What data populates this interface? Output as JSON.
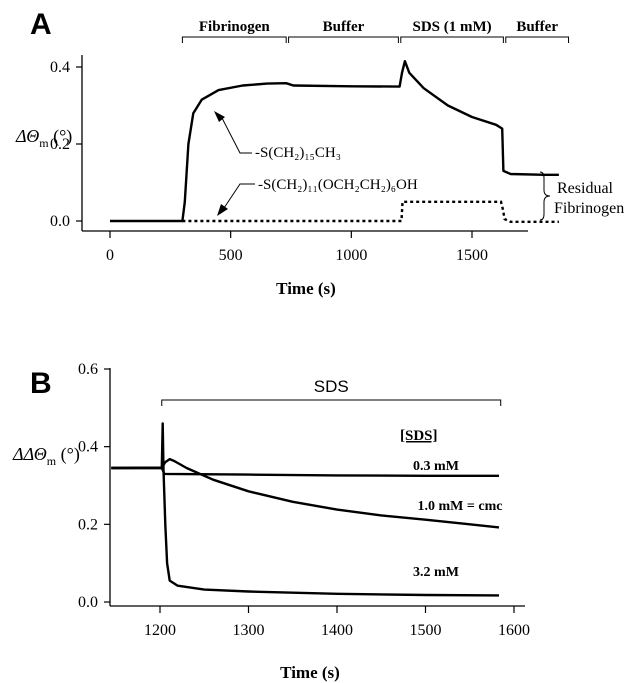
{
  "chart_data": [
    {
      "panel": "A",
      "type": "line",
      "ylabel_main": "ΔΘ",
      "ylabel_sub": "m",
      "ylabel_unit": " (°)",
      "xlabel": "Time (s)",
      "xlim": [
        0,
        1900
      ],
      "ylim": [
        0,
        0.42
      ],
      "x_ticks": [
        "0",
        "500",
        "1000",
        "1500"
      ],
      "y_ticks": [
        "0.0",
        "0.2",
        "0.4"
      ],
      "phases": [
        {
          "label": "Fibrinogen",
          "start": 300,
          "end": 730
        },
        {
          "label": "Buffer",
          "start": 740,
          "end": 1195
        },
        {
          "label": "SDS (1 mM)",
          "start": 1205,
          "end": 1630
        },
        {
          "label": "Buffer",
          "start": 1640,
          "end": 1900
        }
      ],
      "series": [
        {
          "name": "-S(CH2)15CH3",
          "style": "solid",
          "points": [
            [
              0,
              0
            ],
            [
              300,
              0
            ],
            [
              310,
              0.05
            ],
            [
              325,
              0.2
            ],
            [
              345,
              0.28
            ],
            [
              380,
              0.315
            ],
            [
              450,
              0.34
            ],
            [
              550,
              0.352
            ],
            [
              650,
              0.357
            ],
            [
              730,
              0.358
            ],
            [
              760,
              0.352
            ],
            [
              1000,
              0.35
            ],
            [
              1200,
              0.349
            ],
            [
              1210,
              0.385
            ],
            [
              1222,
              0.415
            ],
            [
              1240,
              0.385
            ],
            [
              1300,
              0.345
            ],
            [
              1400,
              0.3
            ],
            [
              1500,
              0.27
            ],
            [
              1600,
              0.25
            ],
            [
              1625,
              0.24
            ],
            [
              1630,
              0.13
            ],
            [
              1660,
              0.122
            ],
            [
              1800,
              0.12
            ],
            [
              1860,
              0.12
            ]
          ]
        },
        {
          "name": "-S(CH2)11(OCH2CH2)6OH",
          "style": "dotted",
          "points": [
            [
              300,
              0
            ],
            [
              1208,
              0
            ],
            [
              1212,
              0.05
            ],
            [
              1620,
              0.05
            ],
            [
              1628,
              0.03
            ],
            [
              1635,
              0.005
            ],
            [
              1660,
              -0.002
            ],
            [
              1760,
              -0.002
            ],
            [
              1860,
              -0.002
            ]
          ]
        }
      ],
      "annotations": [
        "-S(CH₂)₁₅CH₃",
        "-S(CH₂)₁₁(OCH₂CH₂)₆OH"
      ],
      "side_label": [
        "Residual",
        "Fibrinogen"
      ]
    },
    {
      "panel": "B",
      "type": "line",
      "ylabel_main": "ΔΔΘ",
      "ylabel_sub": "m",
      "ylabel_unit": " (°)",
      "xlabel": "Time (s)",
      "xlim": [
        1145,
        1600
      ],
      "ylim": [
        -0.02,
        0.6
      ],
      "x_ticks": [
        "1200",
        "1300",
        "1400",
        "1500",
        "1600"
      ],
      "y_ticks": [
        "0.0",
        "0.2",
        "0.4",
        "0.6"
      ],
      "phase": {
        "label": "SDS",
        "start": 1202,
        "end": 1585
      },
      "legend_title": "[SDS]",
      "series": [
        {
          "name": "0.3 mM",
          "points": [
            [
              1145,
              0.345
            ],
            [
              1202,
              0.345
            ],
            [
              1205,
              0.33
            ],
            [
              1300,
              0.328
            ],
            [
              1400,
              0.326
            ],
            [
              1500,
              0.325
            ],
            [
              1583,
              0.325
            ]
          ]
        },
        {
          "name": "1.0 mM = cmc",
          "points": [
            [
              1145,
              0.345
            ],
            [
              1202,
              0.346
            ],
            [
              1206,
              0.36
            ],
            [
              1211,
              0.368
            ],
            [
              1216,
              0.363
            ],
            [
              1230,
              0.345
            ],
            [
              1260,
              0.315
            ],
            [
              1300,
              0.285
            ],
            [
              1350,
              0.258
            ],
            [
              1400,
              0.238
            ],
            [
              1450,
              0.223
            ],
            [
              1500,
              0.212
            ],
            [
              1550,
              0.2
            ],
            [
              1583,
              0.192
            ]
          ]
        },
        {
          "name": "3.2 mM",
          "points": [
            [
              1145,
              0.345
            ],
            [
              1202,
              0.345
            ],
            [
              1203,
              0.46
            ],
            [
              1204,
              0.34
            ],
            [
              1206,
              0.2
            ],
            [
              1208,
              0.1
            ],
            [
              1211,
              0.055
            ],
            [
              1220,
              0.042
            ],
            [
              1250,
              0.032
            ],
            [
              1300,
              0.027
            ],
            [
              1400,
              0.021
            ],
            [
              1500,
              0.018
            ],
            [
              1583,
              0.017
            ]
          ]
        }
      ]
    }
  ]
}
